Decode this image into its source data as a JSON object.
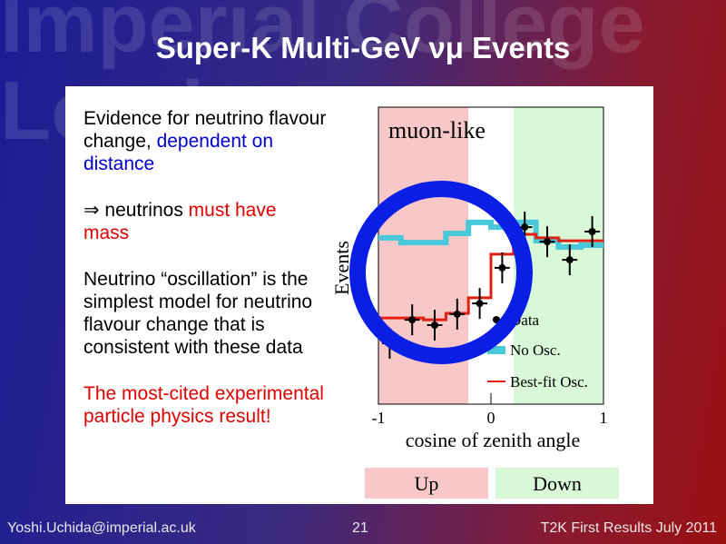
{
  "watermark": [
    "Imperial College",
    "London"
  ],
  "title": "Super-K Multi-GeV νμ Events",
  "paragraphs": [
    [
      {
        "text": "Evidence for neutrino flavour change, ",
        "color": "#000000"
      },
      {
        "text": "dependent on distance",
        "color": "#0000cc"
      }
    ],
    [
      {
        "text": "⇒ neutrinos ",
        "color": "#000000"
      },
      {
        "text": "must have mass",
        "color": "#e00000"
      }
    ],
    [
      {
        "text": "Neutrino “oscillation” is the simplest model for neutrino flavour change that is consistent with these data",
        "color": "#000000"
      }
    ],
    [
      {
        "text": "The most-cited experimental particle physics result!",
        "color": "#e00000"
      }
    ]
  ],
  "chart_data": {
    "type": "histogram",
    "annotation": "muon-like",
    "xlabel": "cosine of zenith angle",
    "ylabel": "Events",
    "bins": [
      -1,
      -0.8,
      -0.6,
      -0.4,
      -0.2,
      0,
      0.2,
      0.4,
      0.6,
      0.8,
      1
    ],
    "xlim": [
      -1,
      1
    ],
    "ylim": [
      0,
      100
    ],
    "xticks": [
      -1,
      0,
      1
    ],
    "regions": [
      {
        "label": "Up",
        "range": [
          -1,
          -0.2
        ],
        "color": "#f8c8c8"
      },
      {
        "label": "Down",
        "range": [
          0.2,
          1
        ],
        "color": "#d8f8d8"
      }
    ],
    "series": [
      {
        "name": "Data",
        "color": "#000000",
        "values": [
          20.5,
          28.4,
          26.6,
          30.3,
          33.9,
          45.9,
          59.6,
          54.7,
          48.6,
          58.1
        ],
        "errors": [
          5.2,
          5.2,
          5.2,
          5.2,
          5.2,
          5.2,
          5.2,
          5.2,
          5.2,
          5.2
        ]
      },
      {
        "name": "No Osc.",
        "color": "#48c8d8",
        "values": [
          56,
          54.4,
          54.4,
          57.5,
          61.2,
          59.6,
          61.2,
          55,
          52.9,
          53.5
        ]
      },
      {
        "name": "Best-fit Osc.",
        "color": "#e02010",
        "values": [
          29,
          29,
          28.4,
          30.6,
          35.8,
          50.5,
          57.2,
          56,
          55,
          55
        ]
      }
    ]
  },
  "footer": {
    "left": "Yoshi.Uchida@imperial.ac.uk",
    "center": "21",
    "right": "T2K First Results July 2011"
  }
}
